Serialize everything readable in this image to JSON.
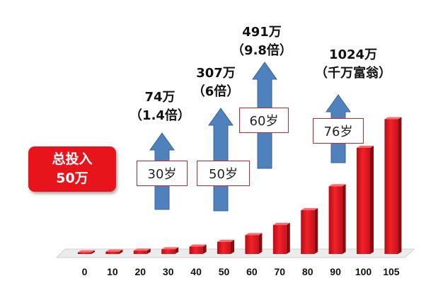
{
  "badge": {
    "line1": "总投入",
    "line2": "50万"
  },
  "chart_data": {
    "type": "bar",
    "categories": [
      "0",
      "10",
      "20",
      "30",
      "40",
      "50",
      "60",
      "70",
      "80",
      "90",
      "100",
      "105"
    ],
    "values": [
      0.5,
      0.7,
      1.0,
      1.4,
      2.2,
      3.6,
      5.6,
      8.6,
      13.0,
      20.1,
      31.5,
      40.0
    ],
    "ylim": [
      0,
      42
    ],
    "colors": {
      "bar": "#e8141b",
      "arrow": "#4f81bd",
      "arrow_border": "#3a6696"
    },
    "annotations": [
      {
        "age_label": "30岁",
        "value": "74万",
        "multiple": "（1.4倍）"
      },
      {
        "age_label": "50岁",
        "value": "307万",
        "multiple": "（6倍）"
      },
      {
        "age_label": "60岁",
        "value": "491万",
        "multiple": "（9.8倍）"
      },
      {
        "age_label": "76岁",
        "value": "1024万",
        "multiple": "（千万富翁）"
      }
    ]
  }
}
